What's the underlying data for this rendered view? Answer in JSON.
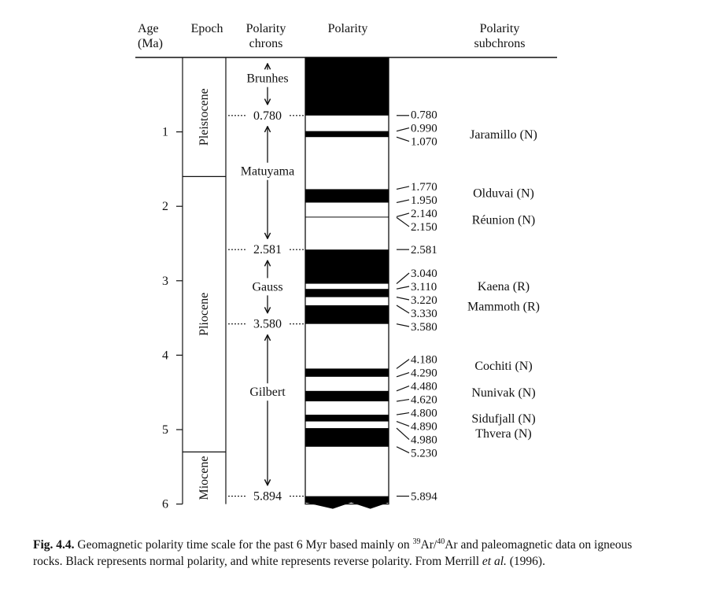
{
  "headers": {
    "age": [
      "Age",
      "(Ma)"
    ],
    "epoch": "Epoch",
    "chrons": [
      "Polarity",
      "chrons"
    ],
    "polarity": "Polarity",
    "subchrons": [
      "Polarity",
      "subchrons"
    ]
  },
  "age_ticks": [
    "1",
    "2",
    "3",
    "4",
    "5",
    "6"
  ],
  "epochs": [
    {
      "name": "Pleistocene",
      "from": 0,
      "to": 1.6
    },
    {
      "name": "Pliocene",
      "from": 1.6,
      "to": 5.3
    },
    {
      "name": "Miocene",
      "from": 5.3,
      "to": 6.0
    }
  ],
  "chrons": [
    {
      "name": "Brunhes"
    },
    {
      "name": "Matuyama"
    },
    {
      "name": "Gauss"
    },
    {
      "name": "Gilbert"
    }
  ],
  "chron_boundaries": [
    {
      "label": "0.780",
      "age": 0.78
    },
    {
      "label": "2.581",
      "age": 2.581
    },
    {
      "label": "3.580",
      "age": 3.58
    },
    {
      "label": "5.894",
      "age": 5.894
    }
  ],
  "normal_intervals": [
    [
      0,
      0.78
    ],
    [
      0.99,
      1.07
    ],
    [
      1.77,
      1.95
    ],
    [
      2.14,
      2.15
    ],
    [
      2.581,
      3.04
    ],
    [
      3.11,
      3.22
    ],
    [
      3.33,
      3.58
    ],
    [
      4.18,
      4.29
    ],
    [
      4.48,
      4.62
    ],
    [
      4.8,
      4.89
    ],
    [
      4.98,
      5.23
    ],
    [
      5.894,
      6.0
    ]
  ],
  "boundary_labels": [
    {
      "label": "0.780",
      "age": 0.78
    },
    {
      "label": "0.990",
      "age": 0.99
    },
    {
      "label": "1.070",
      "age": 1.07
    },
    {
      "label": "1.770",
      "age": 1.77
    },
    {
      "label": "1.950",
      "age": 1.95
    },
    {
      "label": "2.140",
      "age": 2.14
    },
    {
      "label": "2.150",
      "age": 2.15
    },
    {
      "label": "2.581",
      "age": 2.581
    },
    {
      "label": "3.040",
      "age": 3.04
    },
    {
      "label": "3.110",
      "age": 3.11
    },
    {
      "label": "3.220",
      "age": 3.22
    },
    {
      "label": "3.330",
      "age": 3.33
    },
    {
      "label": "3.580",
      "age": 3.58
    },
    {
      "label": "4.180",
      "age": 4.18
    },
    {
      "label": "4.290",
      "age": 4.29
    },
    {
      "label": "4.480",
      "age": 4.48
    },
    {
      "label": "4.620",
      "age": 4.62
    },
    {
      "label": "4.800",
      "age": 4.8
    },
    {
      "label": "4.890",
      "age": 4.89
    },
    {
      "label": "4.980",
      "age": 4.98
    },
    {
      "label": "5.230",
      "age": 5.23
    },
    {
      "label": "5.894",
      "age": 5.894
    }
  ],
  "subchrons": [
    {
      "name": "Jaramillo (N)"
    },
    {
      "name": "Olduvai (N)"
    },
    {
      "name": "Réunion (N)"
    },
    {
      "name": "Kaena (R)"
    },
    {
      "name": "Mammoth (R)"
    },
    {
      "name": "Cochiti (N)"
    },
    {
      "name": "Nunivak (N)"
    },
    {
      "name": "Sidufjall (N)"
    },
    {
      "name": "Thvera (N)"
    }
  ],
  "caption": {
    "label": "Fig. 4.4.",
    "t1": " Geomagnetic polarity time scale for the past 6 Myr based mainly on ",
    "sup1": "39",
    "t2": "Ar/",
    "sup2": "40",
    "t3": "Ar and paleomagnetic data on igneous rocks. Black represents normal polarity, and white represents reverse polarity. From Merrill ",
    "em": "et al.",
    "t4": " (1996)."
  },
  "colors": {
    "normal": "#000000",
    "reverse": "#ffffff",
    "ink": "#111111"
  }
}
